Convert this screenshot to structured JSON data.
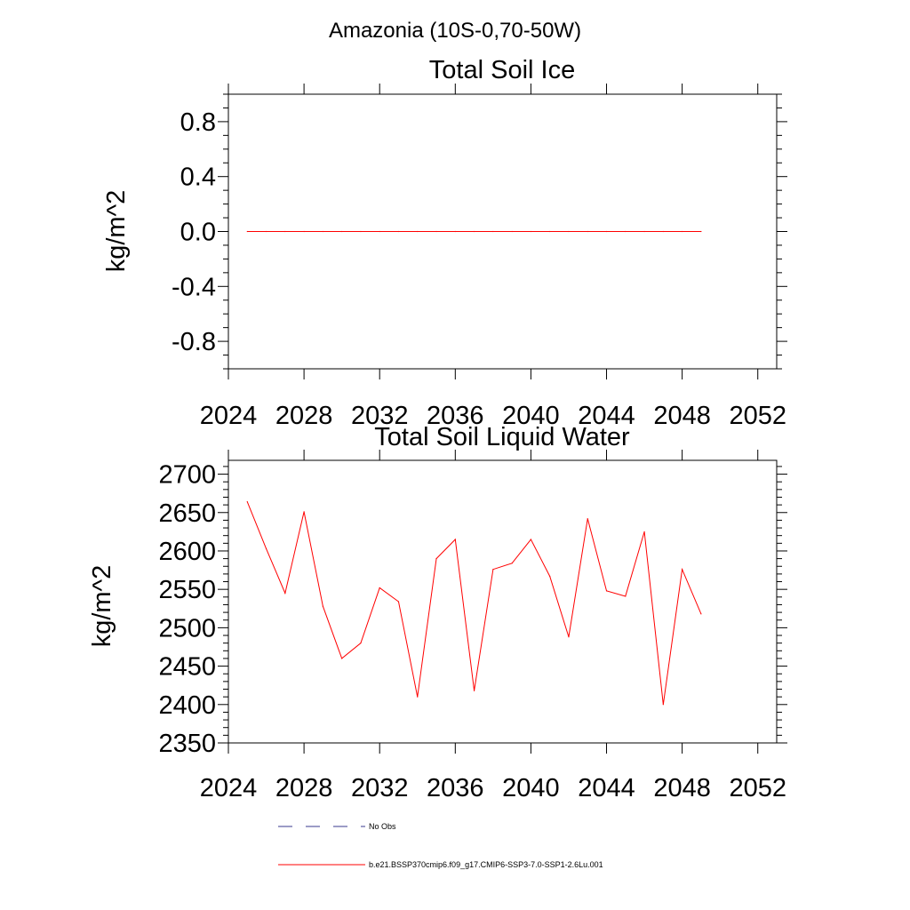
{
  "figure_title": "Amazonia (10S-0,70-50W)",
  "legend": {
    "entries": [
      {
        "label": "No Obs",
        "color": "#3a3a8c",
        "dashed": true
      },
      {
        "label": "b.e21.BSSP370cmip6.f09_g17.CMIP6-SSP3-7.0-SSP1-2.6Lu.001",
        "color": "#ff0000",
        "dashed": false
      }
    ]
  },
  "chart_data": [
    {
      "type": "line",
      "title": "Total Soil Ice",
      "xlabel": "",
      "ylabel": "kg/m^2",
      "xlim": [
        2024,
        2053
      ],
      "ylim": [
        -1.0,
        1.0
      ],
      "xticks": [
        "2024",
        "2028",
        "2032",
        "2036",
        "2040",
        "2044",
        "2048",
        "2052"
      ],
      "yticks": [
        "0.8",
        "0.4",
        "0.0",
        "-0.4",
        "-0.8"
      ],
      "ytick_values": [
        0.8,
        0.4,
        0.0,
        -0.4,
        -0.8
      ],
      "grid": false,
      "series": [
        {
          "color": "#ff0000",
          "x": [
            2025,
            2026,
            2027,
            2028,
            2029,
            2030,
            2031,
            2032,
            2033,
            2034,
            2035,
            2036,
            2037,
            2038,
            2039,
            2040,
            2041,
            2042,
            2043,
            2044,
            2045,
            2046,
            2047,
            2048,
            2049
          ],
          "values": [
            0,
            0,
            0,
            0,
            0,
            0,
            0,
            0,
            0,
            0,
            0,
            0,
            0,
            0,
            0,
            0,
            0,
            0,
            0,
            0,
            0,
            0,
            0,
            0,
            0
          ]
        }
      ]
    },
    {
      "type": "line",
      "title": "Total Soil Liquid Water",
      "xlabel": "",
      "ylabel": "kg/m^2",
      "xlim": [
        2024,
        2053
      ],
      "ylim": [
        2350,
        2718
      ],
      "xticks": [
        "2024",
        "2028",
        "2032",
        "2036",
        "2040",
        "2044",
        "2048",
        "2052"
      ],
      "yticks": [
        "2700",
        "2650",
        "2600",
        "2550",
        "2500",
        "2450",
        "2400",
        "2350"
      ],
      "ytick_values": [
        2700,
        2650,
        2600,
        2550,
        2500,
        2450,
        2400,
        2350
      ],
      "grid": false,
      "series": [
        {
          "color": "#ff0000",
          "x": [
            2025,
            2026,
            2027,
            2028,
            2029,
            2030,
            2031,
            2032,
            2033,
            2034,
            2035,
            2036,
            2037,
            2038,
            2039,
            2040,
            2041,
            2042,
            2043,
            2044,
            2045,
            2046,
            2047,
            2048,
            2049
          ],
          "values": [
            2664,
            2603,
            2545,
            2651,
            2528,
            2460,
            2480,
            2552,
            2534,
            2410,
            2590,
            2615,
            2418,
            2576,
            2584,
            2615,
            2567,
            2488,
            2642,
            2548,
            2541,
            2625,
            2400,
            2576,
            2518
          ]
        }
      ]
    }
  ]
}
